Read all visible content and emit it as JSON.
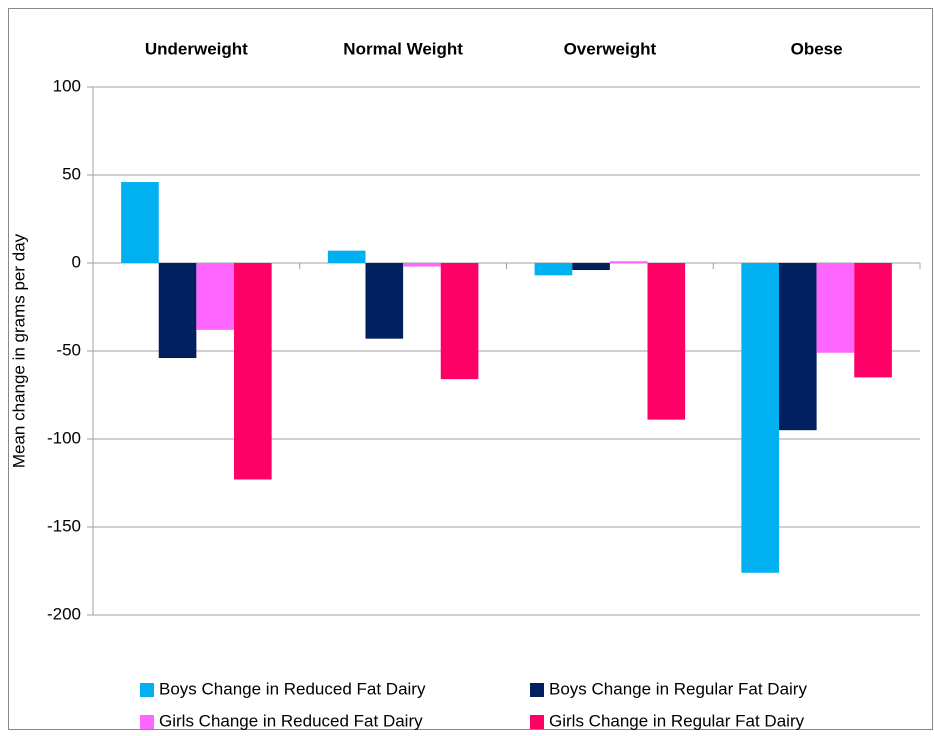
{
  "chart_data": {
    "type": "bar",
    "categories": [
      "Underweight",
      "Normal Weight",
      "Overweight",
      "Obese"
    ],
    "series": [
      {
        "name": "Boys Change in Reduced Fat Dairy",
        "color": "#00b0f0",
        "values": [
          46,
          7,
          -7,
          -176
        ]
      },
      {
        "name": "Boys Change in Regular Fat Dairy",
        "color": "#002060",
        "values": [
          -54,
          -43,
          -4,
          -95
        ]
      },
      {
        "name": "Girls Change in Reduced Fat Dairy",
        "color": "#ff66ff",
        "values": [
          -38,
          -2,
          1,
          -51
        ]
      },
      {
        "name": "Girls Change in Regular Fat Dairy",
        "color": "#ff0066",
        "values": [
          -123,
          -66,
          -89,
          -65
        ]
      }
    ],
    "y_label": "Mean change in grams per day",
    "ylim": [
      -200,
      100
    ],
    "yticks": [
      -200,
      -150,
      -100,
      -50,
      0,
      50,
      100
    ],
    "grid": true,
    "legend": "bottom"
  }
}
